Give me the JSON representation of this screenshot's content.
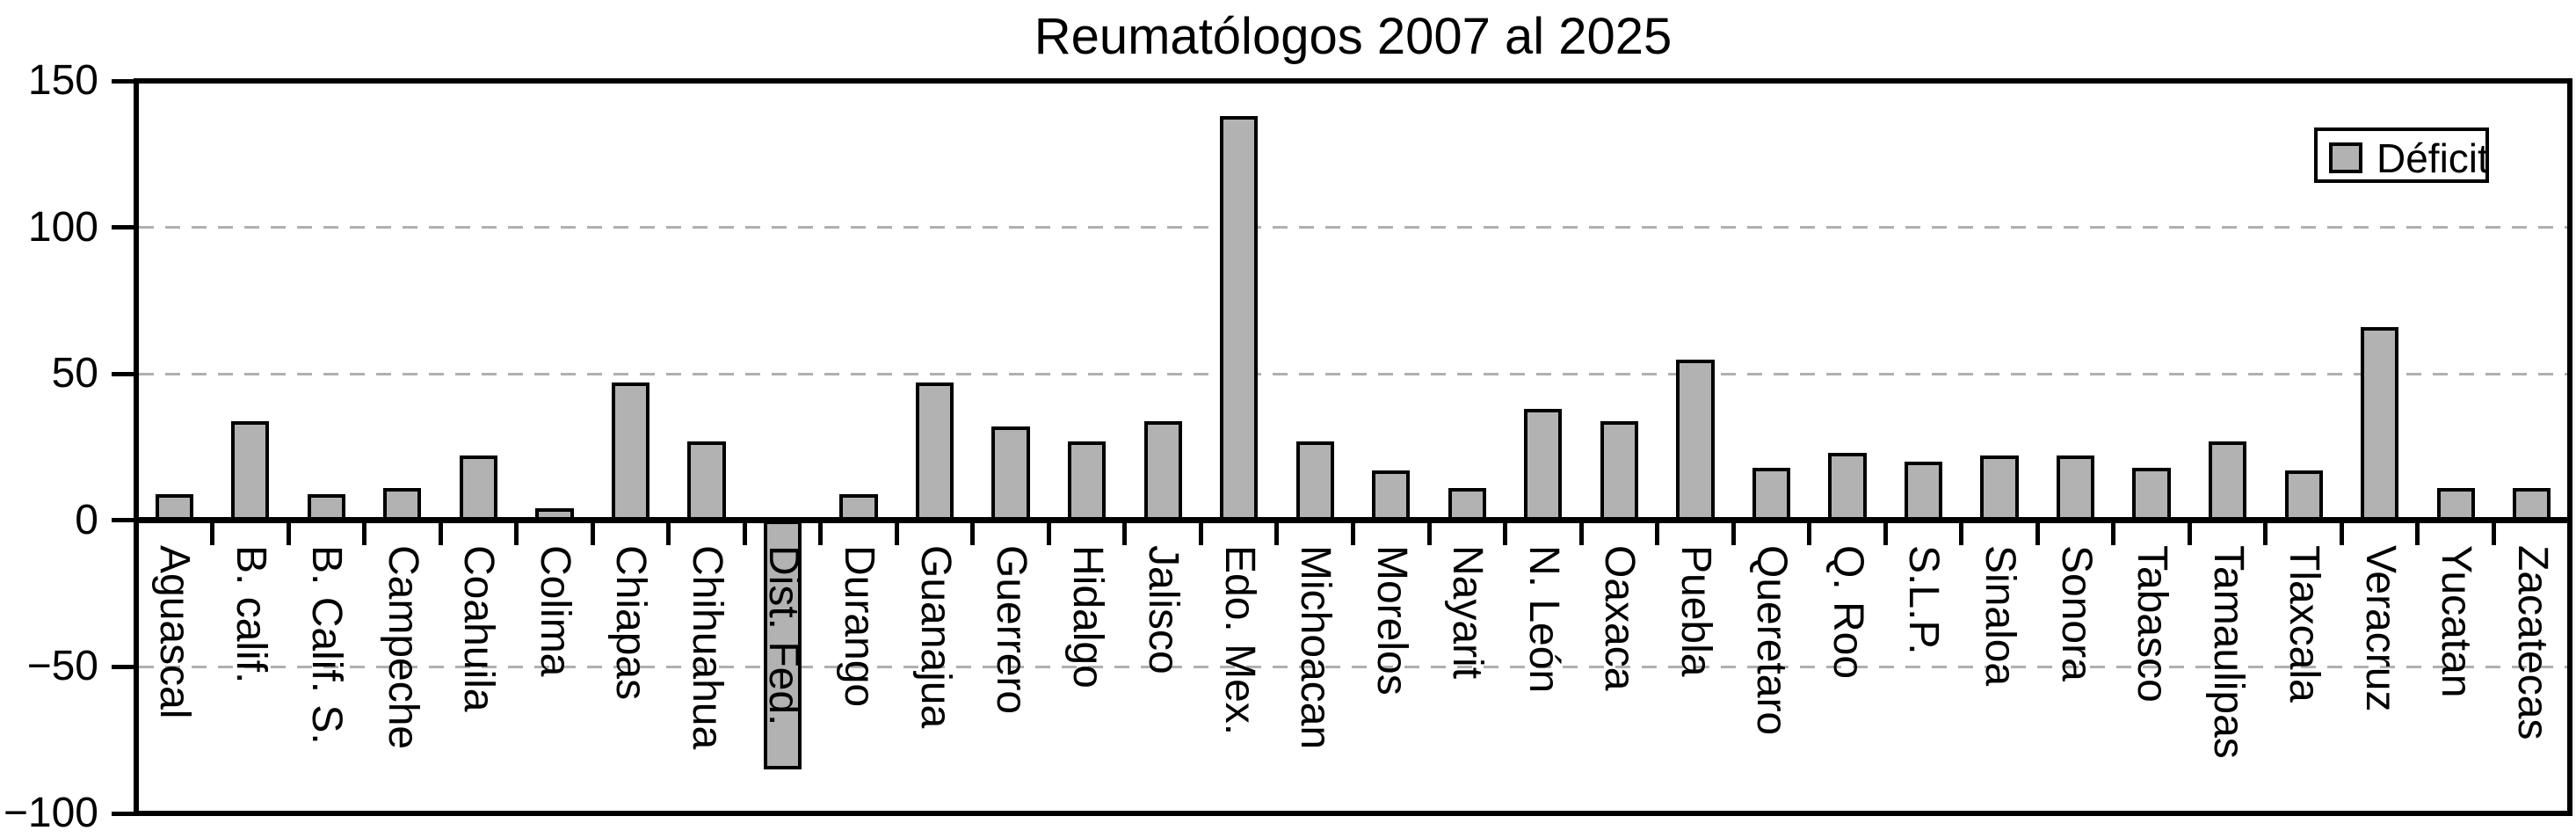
{
  "title": "Reumatólogos 2007 al 2025",
  "legend": {
    "label": "Déficit",
    "position": "upper right",
    "swatch_fill": "#b2b2b2",
    "swatch_border": "#000000"
  },
  "colors": {
    "background": "#ffffff",
    "bar_fill": "#b2b2b2",
    "bar_edge": "#000000",
    "grid": "#b0b0b0",
    "axis": "#000000",
    "text": "#000000"
  },
  "axes": {
    "yticks": [
      150,
      100,
      50,
      0,
      -50,
      -100
    ],
    "ytick_labels": [
      "150",
      "100",
      "50",
      "0",
      "−50",
      "−100"
    ],
    "gridlines_at": [
      100,
      50,
      -50
    ],
    "grid_style": "dashed horizontal"
  },
  "chart_data": {
    "type": "bar",
    "title": "Reumatólogos 2007 al 2025",
    "xlabel": "",
    "ylabel": "",
    "ylim": [
      -100,
      150
    ],
    "grid": "dashed horizontal gridlines at 100, 50 and -50",
    "legend_position": "upper right",
    "series_name": "Déficit",
    "bar_width_fraction": 0.5,
    "xtick_label_rotation": "90deg clockwise, top-aligned below zero axis",
    "categories": [
      "Aguascal",
      "B. calif.",
      "B. Calif. S.",
      "Campeche",
      "Coahuila",
      "Colima",
      "Chiapas",
      "Chihuahua",
      "Dist. Fed.",
      "Durango",
      "Guanajua",
      "Guerrero",
      "Hidalgo",
      "Jalisco",
      "Edo. Mex.",
      "Michoacan",
      "Morelos",
      "Nayarit",
      "N. León",
      "Oaxaca",
      "Puebla",
      "Queretaro",
      "Q. Roo",
      "S.L.P.",
      "Sinaloa",
      "Sonora",
      "Tabasco",
      "Tamaulipas",
      "Tlaxcala",
      "Veracruz",
      "Yucatan",
      "Zacatecas"
    ],
    "values": [
      9,
      34,
      9,
      11,
      22,
      4,
      47,
      27,
      -85,
      9,
      47,
      32,
      27,
      34,
      138,
      27,
      17,
      11,
      38,
      34,
      55,
      18,
      23,
      20,
      22,
      22,
      18,
      27,
      17,
      66,
      11,
      11
    ]
  }
}
